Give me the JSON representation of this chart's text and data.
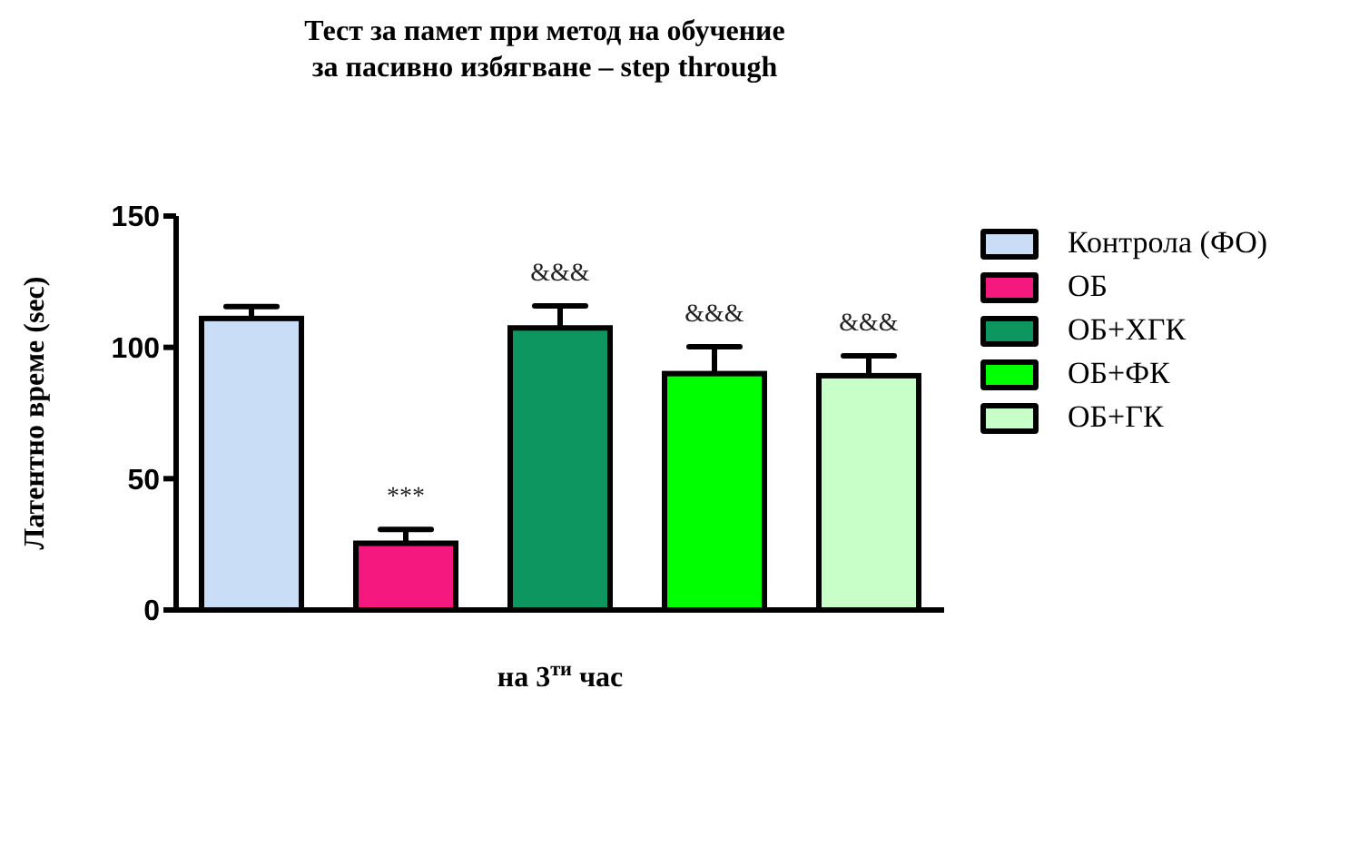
{
  "chart_data": {
    "type": "bar",
    "title": "Тест за памет при метод на обучение\nза пасивно избягване – step through",
    "xlabel": "на 3$^{ти}$ час",
    "ylabel": "Латентно време (sec)",
    "categories": [
      null
    ],
    "series": [
      {
        "name": "Контрола (ФО)",
        "color": "#c9ddf7",
        "values": [
          111
        ],
        "errors": [
          4.5
        ]
      },
      {
        "name": "ОБ",
        "color": "#f5187f",
        "values": [
          25.4
        ],
        "errors": [
          5.3
        ],
        "value_labels": [
          "***"
        ]
      },
      {
        "name": "ОБ+ХГК",
        "color": "#0d9660",
        "values": [
          107.4
        ],
        "errors": [
          8.4
        ],
        "value_labels": [
          "&&&"
        ]
      },
      {
        "name": "ОБ+ФК",
        "color": "#00ff00",
        "values": [
          90
        ],
        "errors": [
          10.2
        ],
        "value_labels": [
          "&&&"
        ]
      },
      {
        "name": "ОБ+ГК",
        "color": "#c8ffc8",
        "values": [
          89.2
        ],
        "errors": [
          7.6
        ],
        "value_labels": [
          "&&&"
        ]
      }
    ],
    "ylim": [
      0,
      150
    ],
    "yticks": [
      0,
      50,
      100,
      150
    ],
    "grid": false,
    "legend": "right"
  }
}
